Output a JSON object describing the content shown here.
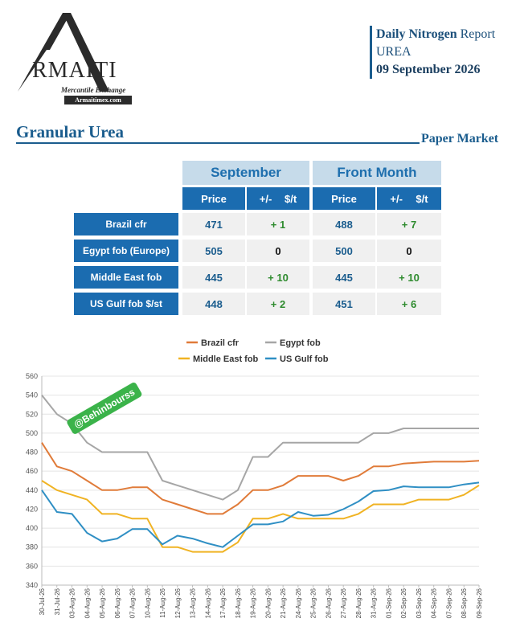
{
  "logo": {
    "letter": "A",
    "name": "RMAITI",
    "subtitle": "Mercantile Exchange",
    "url": "Armaitimex.com"
  },
  "report": {
    "title_bold": "Daily Nitrogen",
    "title_rest": " Report",
    "product": "UREA",
    "date": "09 September 2026"
  },
  "section": {
    "title": "Granular Urea",
    "subtitle": "Paper Market"
  },
  "table": {
    "groups": [
      "September",
      "Front Month"
    ],
    "subheaders": [
      "Price",
      "+/-",
      "$/t",
      "Price",
      "+/-",
      "$/t"
    ],
    "rows": [
      {
        "label": "Brazil cfr",
        "sep_price": "471",
        "sep_change": "+ 1",
        "fm_price": "488",
        "fm_change": "+ 7"
      },
      {
        "label": "Egypt fob (Europe)",
        "sep_price": "505",
        "sep_change": "0",
        "fm_price": "500",
        "fm_change": "0"
      },
      {
        "label": "Middle East fob",
        "sep_price": "445",
        "sep_change": "+ 10",
        "fm_price": "445",
        "fm_change": "+ 10"
      },
      {
        "label": "US Gulf fob $/st",
        "sep_price": "448",
        "sep_change": "+ 2",
        "fm_price": "451",
        "fm_change": "+ 6"
      }
    ],
    "colors": {
      "header_light": "#c6dbea",
      "header_dark": "#1b6cb0",
      "positive": "#2e8b2e"
    }
  },
  "watermark": "@Behinbourss",
  "chart_data": {
    "type": "line",
    "ylim": [
      340,
      560
    ],
    "yticks": [
      340,
      360,
      380,
      400,
      420,
      440,
      460,
      480,
      500,
      520,
      540,
      560
    ],
    "grid": true,
    "legend_position": "top",
    "categories": [
      "30-Jul-26",
      "31-Jul-26",
      "03-Aug-26",
      "04-Aug-26",
      "05-Aug-26",
      "06-Aug-26",
      "07-Aug-26",
      "10-Aug-26",
      "11-Aug-26",
      "12-Aug-26",
      "13-Aug-26",
      "14-Aug-26",
      "17-Aug-26",
      "18-Aug-26",
      "19-Aug-26",
      "20-Aug-26",
      "21-Aug-26",
      "24-Aug-26",
      "25-Aug-26",
      "26-Aug-26",
      "27-Aug-26",
      "28-Aug-26",
      "31-Aug-26",
      "01-Sep-26",
      "02-Sep-26",
      "03-Sep-26",
      "04-Sep-26",
      "07-Sep-26",
      "08-Sep-26",
      "09-Sep-26"
    ],
    "series": [
      {
        "name": "Brazil cfr",
        "color": "#e07b39",
        "values": [
          490,
          465,
          460,
          450,
          440,
          440,
          443,
          443,
          430,
          425,
          420,
          415,
          415,
          425,
          440,
          440,
          445,
          455,
          455,
          455,
          450,
          455,
          465,
          465,
          468,
          469,
          470,
          470,
          470,
          471
        ]
      },
      {
        "name": "Egypt fob",
        "color": "#a6a6a6",
        "values": [
          540,
          520,
          510,
          490,
          480,
          480,
          480,
          480,
          450,
          445,
          440,
          435,
          430,
          440,
          475,
          475,
          490,
          490,
          490,
          490,
          490,
          490,
          500,
          500,
          505,
          505,
          505,
          505,
          505,
          505
        ]
      },
      {
        "name": "Middle East fob",
        "color": "#f0b323",
        "values": [
          450,
          440,
          435,
          430,
          415,
          415,
          410,
          410,
          380,
          380,
          375,
          375,
          375,
          385,
          410,
          410,
          415,
          410,
          410,
          410,
          410,
          415,
          425,
          425,
          425,
          430,
          430,
          430,
          435,
          445
        ]
      },
      {
        "name": "US Gulf fob",
        "color": "#2f8fc4",
        "values": [
          440,
          417,
          415,
          395,
          386,
          389,
          399,
          399,
          383,
          392,
          389,
          384,
          380,
          392,
          404,
          404,
          407,
          417,
          413,
          414,
          420,
          428,
          439,
          440,
          444,
          443,
          443,
          443,
          446,
          448
        ]
      }
    ]
  }
}
